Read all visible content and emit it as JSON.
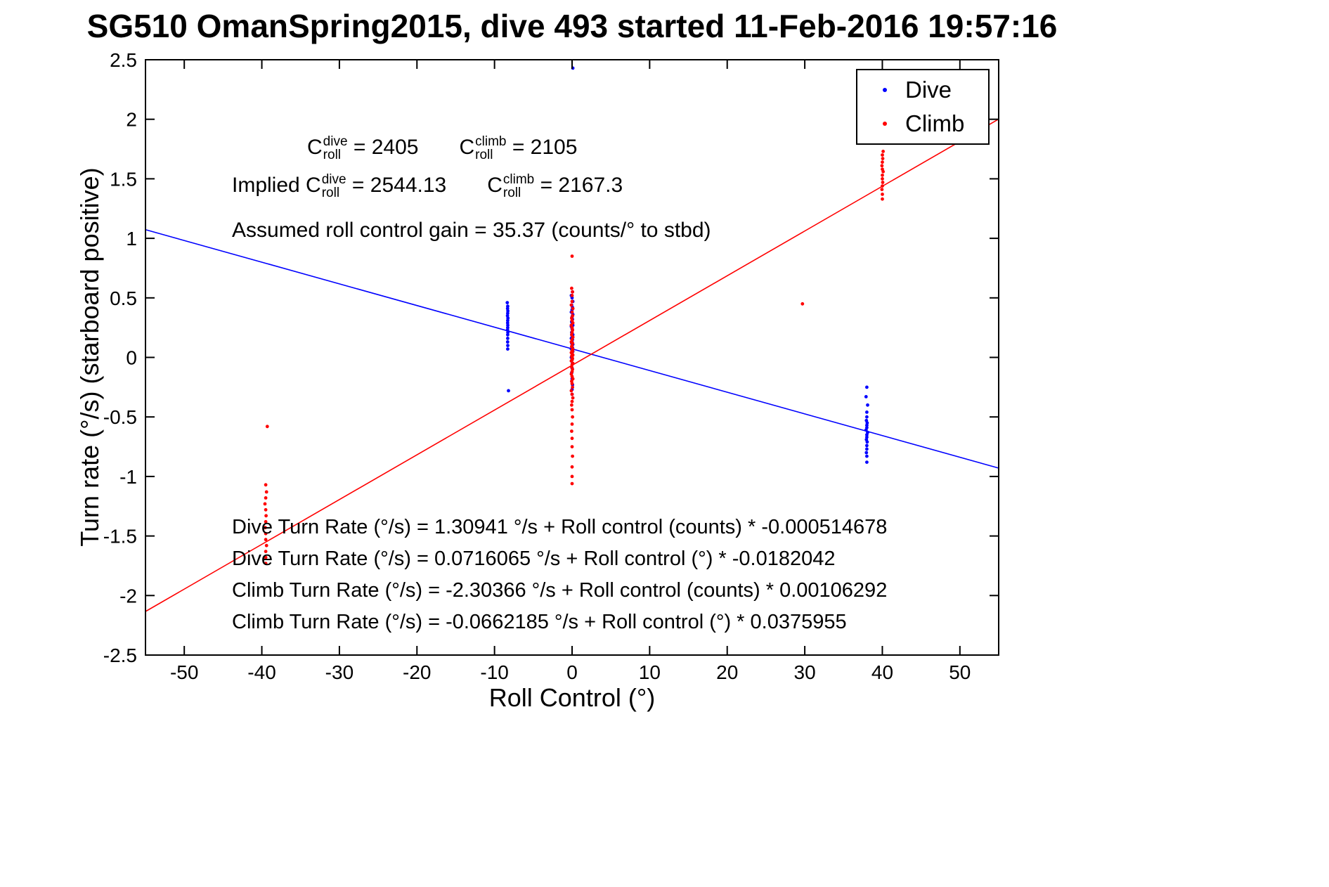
{
  "chart_data": {
    "type": "scatter",
    "title": "SG510 OmanSpring2015, dive 493 started 11-Feb-2016 19:57:16",
    "xlabel": "Roll Control (°)",
    "ylabel": "Turn rate (°/s) (starboard positive)",
    "xlim": [
      -55,
      55
    ],
    "ylim": [
      -2.5,
      2.5
    ],
    "grid": false,
    "legend_position": "top-right",
    "x_tick_values": [
      -50,
      -40,
      -30,
      -20,
      -10,
      0,
      10,
      20,
      30,
      40,
      50
    ],
    "x_tick_labels": [
      "-50",
      "-40",
      "-30",
      "-20",
      "-10",
      "0",
      "10",
      "20",
      "30",
      "40",
      "50"
    ],
    "y_tick_values": [
      -2.5,
      -2,
      -1.5,
      -1,
      -0.5,
      0,
      0.5,
      1,
      1.5,
      2,
      2.5
    ],
    "y_tick_labels": [
      "-2.5",
      "-2",
      "-1.5",
      "-1",
      "-0.5",
      "0",
      "0.5",
      "1",
      "1.5",
      "2",
      "2.5"
    ],
    "series": [
      {
        "name": "Dive",
        "color": "#0000ff",
        "marker": ".",
        "points": [
          [
            -8.35,
            0.46
          ],
          [
            -8.3,
            0.43
          ],
          [
            -8.32,
            0.41
          ],
          [
            -8.28,
            0.39
          ],
          [
            -8.3,
            0.37
          ],
          [
            -8.33,
            0.35
          ],
          [
            -8.27,
            0.33
          ],
          [
            -8.3,
            0.31
          ],
          [
            -8.31,
            0.29
          ],
          [
            -8.29,
            0.27
          ],
          [
            -8.3,
            0.25
          ],
          [
            -8.32,
            0.23
          ],
          [
            -8.28,
            0.21
          ],
          [
            -8.3,
            0.19
          ],
          [
            -8.3,
            0.16
          ],
          [
            -8.31,
            0.13
          ],
          [
            -8.29,
            0.1
          ],
          [
            -8.3,
            0.07
          ],
          [
            -8.2,
            -0.28
          ],
          [
            0.1,
            2.43
          ],
          [
            0.05,
            0.55
          ],
          [
            -0.1,
            0.52
          ],
          [
            0,
            0.5
          ],
          [
            0.1,
            0.47
          ],
          [
            -0.05,
            0.44
          ],
          [
            0.05,
            0.42
          ],
          [
            0,
            0.4
          ],
          [
            -0.1,
            0.38
          ],
          [
            0.1,
            0.36
          ],
          [
            0,
            0.34
          ],
          [
            0.05,
            0.32
          ],
          [
            -0.05,
            0.3
          ],
          [
            0,
            0.29
          ],
          [
            0.1,
            0.27
          ],
          [
            -0.1,
            0.26
          ],
          [
            0,
            0.24
          ],
          [
            0.05,
            0.23
          ],
          [
            -0.05,
            0.21
          ],
          [
            0,
            0.2
          ],
          [
            0.1,
            0.19
          ],
          [
            0,
            0.17
          ],
          [
            -0.1,
            0.16
          ],
          [
            0.05,
            0.15
          ],
          [
            0,
            0.13
          ],
          [
            -0.05,
            0.12
          ],
          [
            0.1,
            0.11
          ],
          [
            0,
            0.1
          ],
          [
            0.05,
            0.08
          ],
          [
            -0.1,
            0.07
          ],
          [
            0,
            0.06
          ],
          [
            0.1,
            0.05
          ],
          [
            -0.05,
            0.04
          ],
          [
            0,
            0.03
          ],
          [
            0.05,
            0.02
          ],
          [
            0,
            0.01
          ],
          [
            -0.1,
            0
          ],
          [
            0,
            -0.02
          ],
          [
            0.05,
            -0.05
          ],
          [
            0,
            -0.09
          ],
          [
            -0.05,
            -0.13
          ],
          [
            0,
            -0.18
          ],
          [
            0.05,
            -0.23
          ],
          [
            0,
            -0.27
          ],
          [
            0,
            -0.31
          ],
          [
            38,
            -0.25
          ],
          [
            37.9,
            -0.33
          ],
          [
            38.1,
            -0.4
          ],
          [
            38,
            -0.46
          ],
          [
            38,
            -0.5
          ],
          [
            37.95,
            -0.53
          ],
          [
            38.05,
            -0.55
          ],
          [
            38,
            -0.57
          ],
          [
            38,
            -0.59
          ],
          [
            37.9,
            -0.61
          ],
          [
            38.1,
            -0.63
          ],
          [
            38,
            -0.65
          ],
          [
            38,
            -0.67
          ],
          [
            37.95,
            -0.69
          ],
          [
            38.05,
            -0.71
          ],
          [
            38,
            -0.74
          ],
          [
            38,
            -0.77
          ],
          [
            37.95,
            -0.8
          ],
          [
            38,
            -0.83
          ],
          [
            38,
            -0.88
          ]
        ]
      },
      {
        "name": "Climb",
        "color": "#ff0000",
        "marker": ".",
        "points": [
          [
            0,
            0.85
          ],
          [
            -0.05,
            0.58
          ],
          [
            0.05,
            0.55
          ],
          [
            0,
            0.52
          ],
          [
            0,
            0.47
          ],
          [
            -0.1,
            0.44
          ],
          [
            0.1,
            0.41
          ],
          [
            0,
            0.38
          ],
          [
            0.05,
            0.35
          ],
          [
            -0.05,
            0.33
          ],
          [
            0,
            0.31
          ],
          [
            0.1,
            0.29
          ],
          [
            -0.1,
            0.27
          ],
          [
            0,
            0.25
          ],
          [
            0.05,
            0.23
          ],
          [
            0,
            0.21
          ],
          [
            -0.05,
            0.19
          ],
          [
            0.1,
            0.17
          ],
          [
            0,
            0.15
          ],
          [
            -0.1,
            0.13
          ],
          [
            0.05,
            0.12
          ],
          [
            0,
            0.1
          ],
          [
            -0.05,
            0.09
          ],
          [
            0.1,
            0.07
          ],
          [
            0,
            0.06
          ],
          [
            0.05,
            0.05
          ],
          [
            -0.1,
            0.04
          ],
          [
            0,
            0.03
          ],
          [
            0.1,
            0.02
          ],
          [
            -0.05,
            0.01
          ],
          [
            0,
            0
          ],
          [
            0.05,
            -0.01
          ],
          [
            0,
            -0.02
          ],
          [
            -0.1,
            -0.03
          ],
          [
            0.1,
            -0.05
          ],
          [
            0,
            -0.06
          ],
          [
            -0.05,
            -0.08
          ],
          [
            0.05,
            -0.1
          ],
          [
            0,
            -0.12
          ],
          [
            -0.1,
            -0.14
          ],
          [
            0,
            -0.16
          ],
          [
            0.1,
            -0.18
          ],
          [
            -0.05,
            -0.2
          ],
          [
            0,
            -0.22
          ],
          [
            0.05,
            -0.25
          ],
          [
            -0.1,
            -0.28
          ],
          [
            0,
            -0.31
          ],
          [
            0.1,
            -0.34
          ],
          [
            0,
            -0.37
          ],
          [
            -0.05,
            -0.4
          ],
          [
            0,
            -0.44
          ],
          [
            0.05,
            -0.5
          ],
          [
            0,
            -0.56
          ],
          [
            -0.05,
            -0.62
          ],
          [
            0,
            -0.68
          ],
          [
            0,
            -0.75
          ],
          [
            0.05,
            -0.83
          ],
          [
            0,
            -0.92
          ],
          [
            0,
            -1
          ],
          [
            0,
            -1.06
          ],
          [
            -39.3,
            -0.58
          ],
          [
            -39.5,
            -1.07
          ],
          [
            -39.4,
            -1.13
          ],
          [
            -39.5,
            -1.18
          ],
          [
            -39.6,
            -1.23
          ],
          [
            -39.5,
            -1.28
          ],
          [
            -39.45,
            -1.33
          ],
          [
            -39.5,
            -1.38
          ],
          [
            -39.55,
            -1.43
          ],
          [
            -39.5,
            -1.48
          ],
          [
            -39.5,
            -1.53
          ],
          [
            -39.4,
            -1.58
          ],
          [
            -39.5,
            -1.63
          ],
          [
            -39.5,
            -1.68
          ],
          [
            -39.5,
            -1.73
          ],
          [
            40.1,
            1.73
          ],
          [
            40,
            1.7
          ],
          [
            40.05,
            1.67
          ],
          [
            40,
            1.64
          ],
          [
            39.95,
            1.61
          ],
          [
            40,
            1.58
          ],
          [
            40.1,
            1.56
          ],
          [
            40,
            1.53
          ],
          [
            40,
            1.5
          ],
          [
            40.05,
            1.47
          ],
          [
            40,
            1.44
          ],
          [
            39.95,
            1.41
          ],
          [
            40,
            1.37
          ],
          [
            40,
            1.33
          ],
          [
            29.7,
            0.45
          ]
        ]
      }
    ],
    "fit_lines": [
      {
        "name": "dive-fit",
        "color": "#0000ff",
        "intercept": 0.0716065,
        "slope": -0.0182042
      },
      {
        "name": "climb-fit",
        "color": "#ff0000",
        "intercept": -0.0662185,
        "slope": 0.0375955
      }
    ],
    "annotations": {
      "c_values": {
        "sym": "C",
        "line1": {
          "sup1": "dive",
          "sub1": "roll",
          "eq1": " = 2405",
          "sup2": "climb",
          "sub2": "roll",
          "eq2": " = 2105"
        },
        "line2": {
          "prefix": "Implied ",
          "sup1": "dive",
          "sub1": "roll",
          "eq1": " = 2544.13",
          "sup2": "climb",
          "sub2": "roll",
          "eq2": " = 2167.3"
        }
      },
      "gain_line": "Assumed roll control gain = 35.37 (counts/° to stbd)",
      "fit_equations": [
        "Dive Turn Rate (°/s) = 1.30941 °/s + Roll control (counts) * -0.000514678",
        "Dive Turn Rate (°/s) = 0.0716065 °/s + Roll control (°) * -0.0182042",
        "Climb Turn Rate (°/s) = -2.30366 °/s + Roll control (counts) * 0.00106292",
        "Climb Turn Rate (°/s) = -0.0662185 °/s + Roll control (°) * 0.0375955"
      ]
    }
  }
}
